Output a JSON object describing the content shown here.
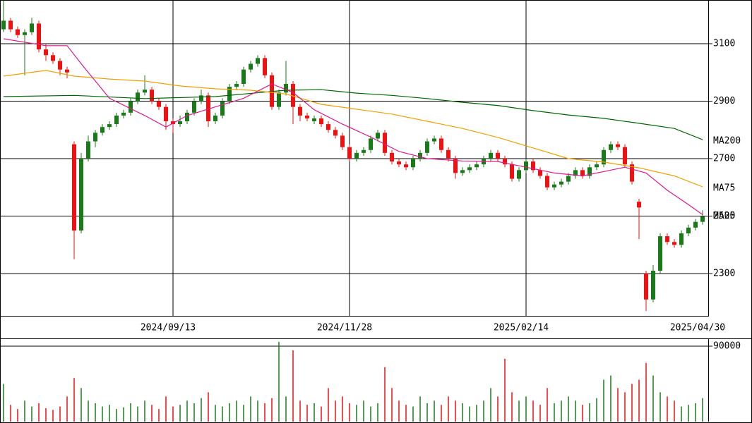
{
  "chart_data": {
    "type": "candlestick",
    "up_color": "#1a7a1a",
    "down_color": "#ee1111",
    "candles": [
      [
        3150,
        3250,
        3140,
        3180
      ],
      [
        3180,
        3190,
        3140,
        3150
      ],
      [
        3150,
        3160,
        3120,
        3130
      ],
      [
        3130,
        3150,
        2990,
        3140
      ],
      [
        3140,
        3190,
        3130,
        3170
      ],
      [
        3170,
        3180,
        3070,
        3080
      ],
      [
        3080,
        3100,
        3040,
        3060
      ],
      [
        3060,
        3070,
        3030,
        3040
      ],
      [
        3040,
        3050,
        2990,
        3010
      ],
      [
        3010,
        3020,
        2980,
        3000
      ],
      [
        2750,
        2760,
        2350,
        2450
      ],
      [
        2450,
        2720,
        2440,
        2700
      ],
      [
        2700,
        2780,
        2690,
        2760
      ],
      [
        2760,
        2800,
        2740,
        2790
      ],
      [
        2790,
        2820,
        2780,
        2810
      ],
      [
        2810,
        2830,
        2800,
        2820
      ],
      [
        2820,
        2860,
        2810,
        2850
      ],
      [
        2850,
        2870,
        2840,
        2860
      ],
      [
        2860,
        2910,
        2850,
        2900
      ],
      [
        2900,
        2940,
        2890,
        2930
      ],
      [
        2930,
        2990,
        2920,
        2940
      ],
      [
        2940,
        2950,
        2890,
        2900
      ],
      [
        2900,
        2910,
        2870,
        2880
      ],
      [
        2880,
        2890,
        2800,
        2830
      ],
      [
        2830,
        2840,
        2790,
        2820
      ],
      [
        2820,
        2850,
        2810,
        2830
      ],
      [
        2830,
        2870,
        2820,
        2860
      ],
      [
        2860,
        2910,
        2850,
        2900
      ],
      [
        2900,
        2940,
        2890,
        2920
      ],
      [
        2920,
        2930,
        2810,
        2830
      ],
      [
        2830,
        2860,
        2820,
        2850
      ],
      [
        2850,
        2910,
        2840,
        2900
      ],
      [
        2900,
        2960,
        2890,
        2950
      ],
      [
        2950,
        2970,
        2940,
        2960
      ],
      [
        2960,
        3020,
        2950,
        3010
      ],
      [
        3010,
        3040,
        3000,
        3030
      ],
      [
        3030,
        3060,
        3020,
        3050
      ],
      [
        3050,
        3060,
        2980,
        2990
      ],
      [
        2990,
        3000,
        2870,
        2880
      ],
      [
        2880,
        2940,
        2870,
        2930
      ],
      [
        2930,
        3040,
        2920,
        2960
      ],
      [
        2960,
        2970,
        2820,
        2880
      ],
      [
        2880,
        2890,
        2830,
        2850
      ],
      [
        2850,
        2860,
        2830,
        2840
      ],
      [
        2830,
        2850,
        2820,
        2840
      ],
      [
        2840,
        2850,
        2810,
        2820
      ],
      [
        2820,
        2830,
        2790,
        2800
      ],
      [
        2800,
        2810,
        2770,
        2780
      ],
      [
        2780,
        2790,
        2730,
        2740
      ],
      [
        2740,
        2750,
        2690,
        2700
      ],
      [
        2700,
        2730,
        2690,
        2720
      ],
      [
        2720,
        2740,
        2710,
        2730
      ],
      [
        2730,
        2780,
        2720,
        2770
      ],
      [
        2770,
        2800,
        2760,
        2790
      ],
      [
        2790,
        2800,
        2710,
        2720
      ],
      [
        2720,
        2730,
        2680,
        2690
      ],
      [
        2690,
        2700,
        2670,
        2680
      ],
      [
        2680,
        2690,
        2660,
        2670
      ],
      [
        2670,
        2710,
        2660,
        2700
      ],
      [
        2700,
        2730,
        2690,
        2720
      ],
      [
        2720,
        2770,
        2710,
        2760
      ],
      [
        2760,
        2780,
        2750,
        2770
      ],
      [
        2770,
        2780,
        2720,
        2730
      ],
      [
        2730,
        2740,
        2690,
        2700
      ],
      [
        2700,
        2710,
        2630,
        2650
      ],
      [
        2650,
        2670,
        2640,
        2660
      ],
      [
        2660,
        2680,
        2650,
        2670
      ],
      [
        2670,
        2690,
        2660,
        2680
      ],
      [
        2680,
        2710,
        2670,
        2700
      ],
      [
        2700,
        2730,
        2690,
        2720
      ],
      [
        2720,
        2730,
        2690,
        2700
      ],
      [
        2700,
        2710,
        2670,
        2680
      ],
      [
        2680,
        2690,
        2620,
        2630
      ],
      [
        2630,
        2670,
        2620,
        2660
      ],
      [
        2660,
        2700,
        2650,
        2690
      ],
      [
        2690,
        2700,
        2650,
        2660
      ],
      [
        2660,
        2670,
        2630,
        2640
      ],
      [
        2640,
        2650,
        2590,
        2600
      ],
      [
        2600,
        2620,
        2590,
        2610
      ],
      [
        2610,
        2630,
        2600,
        2620
      ],
      [
        2620,
        2650,
        2610,
        2640
      ],
      [
        2640,
        2670,
        2630,
        2660
      ],
      [
        2660,
        2670,
        2630,
        2640
      ],
      [
        2640,
        2680,
        2630,
        2670
      ],
      [
        2670,
        2690,
        2660,
        2680
      ],
      [
        2680,
        2740,
        2670,
        2730
      ],
      [
        2730,
        2760,
        2720,
        2750
      ],
      [
        2750,
        2760,
        2730,
        2740
      ],
      [
        2740,
        2750,
        2670,
        2680
      ],
      [
        2680,
        2690,
        2610,
        2620
      ],
      [
        2550,
        2560,
        2420,
        2530
      ],
      [
        2300,
        2310,
        2170,
        2210
      ],
      [
        2210,
        2330,
        2200,
        2310
      ],
      [
        2310,
        2440,
        2300,
        2430
      ],
      [
        2430,
        2440,
        2400,
        2410
      ],
      [
        2410,
        2420,
        2390,
        2400
      ],
      [
        2400,
        2450,
        2390,
        2440
      ],
      [
        2440,
        2470,
        2430,
        2460
      ],
      [
        2460,
        2490,
        2450,
        2480
      ],
      [
        2480,
        2520,
        2470,
        2500
      ]
    ],
    "volume": [
      45000,
      20000,
      15000,
      25000,
      18000,
      22000,
      16000,
      14000,
      18000,
      30000,
      52000,
      40000,
      25000,
      22000,
      18000,
      20000,
      15000,
      17000,
      22000,
      18000,
      25000,
      20000,
      15000,
      30000,
      18000,
      20000,
      25000,
      22000,
      28000,
      35000,
      20000,
      18000,
      22000,
      25000,
      20000,
      30000,
      25000,
      22000,
      28000,
      95000,
      30000,
      85000,
      25000,
      20000,
      22000,
      18000,
      40000,
      25000,
      30000,
      22000,
      20000,
      25000,
      18000,
      22000,
      65000,
      40000,
      25000,
      20000,
      18000,
      30000,
      22000,
      25000,
      20000,
      30000,
      25000,
      22000,
      18000,
      20000,
      25000,
      40000,
      30000,
      75000,
      35000,
      25000,
      30000,
      25000,
      20000,
      40000,
      22000,
      25000,
      30000,
      25000,
      20000,
      22000,
      28000,
      50000,
      55000,
      40000,
      35000,
      45000,
      50000,
      70000,
      55000,
      35000,
      30000,
      25000,
      18000,
      20000,
      22000,
      28000
    ],
    "series": [
      {
        "name": "MA200",
        "color": "#006400",
        "x": [
          0,
          10,
          20,
          30,
          40,
          45,
          50,
          55,
          60,
          65,
          70,
          75,
          80,
          85,
          90,
          95,
          99
        ],
        "values": [
          2916,
          2920,
          2909,
          2916,
          2938,
          2940,
          2928,
          2920,
          2909,
          2896,
          2885,
          2867,
          2852,
          2840,
          2823,
          2805,
          2766
        ]
      },
      {
        "name": "MA75",
        "color": "#f0a000",
        "x": [
          0,
          6,
          10,
          15,
          20,
          25,
          30,
          35,
          40,
          45,
          50,
          55,
          60,
          65,
          70,
          75,
          80,
          85,
          90,
          95,
          99
        ],
        "values": [
          2987,
          3007,
          2987,
          2977,
          2970,
          2953,
          2943,
          2938,
          2925,
          2889,
          2872,
          2855,
          2830,
          2805,
          2774,
          2737,
          2700,
          2688,
          2668,
          2640,
          2602
        ]
      },
      {
        "name": "MA25",
        "color": "#e0198c",
        "x": [
          0,
          6,
          9,
          11,
          15,
          20,
          23,
          26,
          30,
          34,
          38,
          41,
          44,
          48,
          52,
          56,
          60,
          65,
          70,
          74,
          78,
          82,
          86,
          88,
          91,
          94,
          97,
          99
        ],
        "values": [
          3117,
          3093,
          3093,
          3030,
          2910,
          2850,
          2810,
          2850,
          2880,
          2910,
          2960,
          2930,
          2870,
          2820,
          2775,
          2725,
          2700,
          2692,
          2690,
          2670,
          2650,
          2640,
          2660,
          2670,
          2650,
          2590,
          2540,
          2505
        ]
      }
    ],
    "ylim": [
      2153,
      3252
    ],
    "yticks": [
      3100,
      2900,
      2700,
      2500,
      2300
    ],
    "volume_ylim": [
      0,
      99250
    ],
    "volume_ticks": [
      90000
    ],
    "xticks": [
      {
        "value": 24,
        "label": "2024/09/13"
      },
      {
        "value": 49,
        "label": "2024/11/28"
      },
      {
        "value": 74,
        "label": "2025/02/14"
      },
      {
        "value": 99,
        "label": "2025/04/30"
      }
    ],
    "grid": true
  }
}
